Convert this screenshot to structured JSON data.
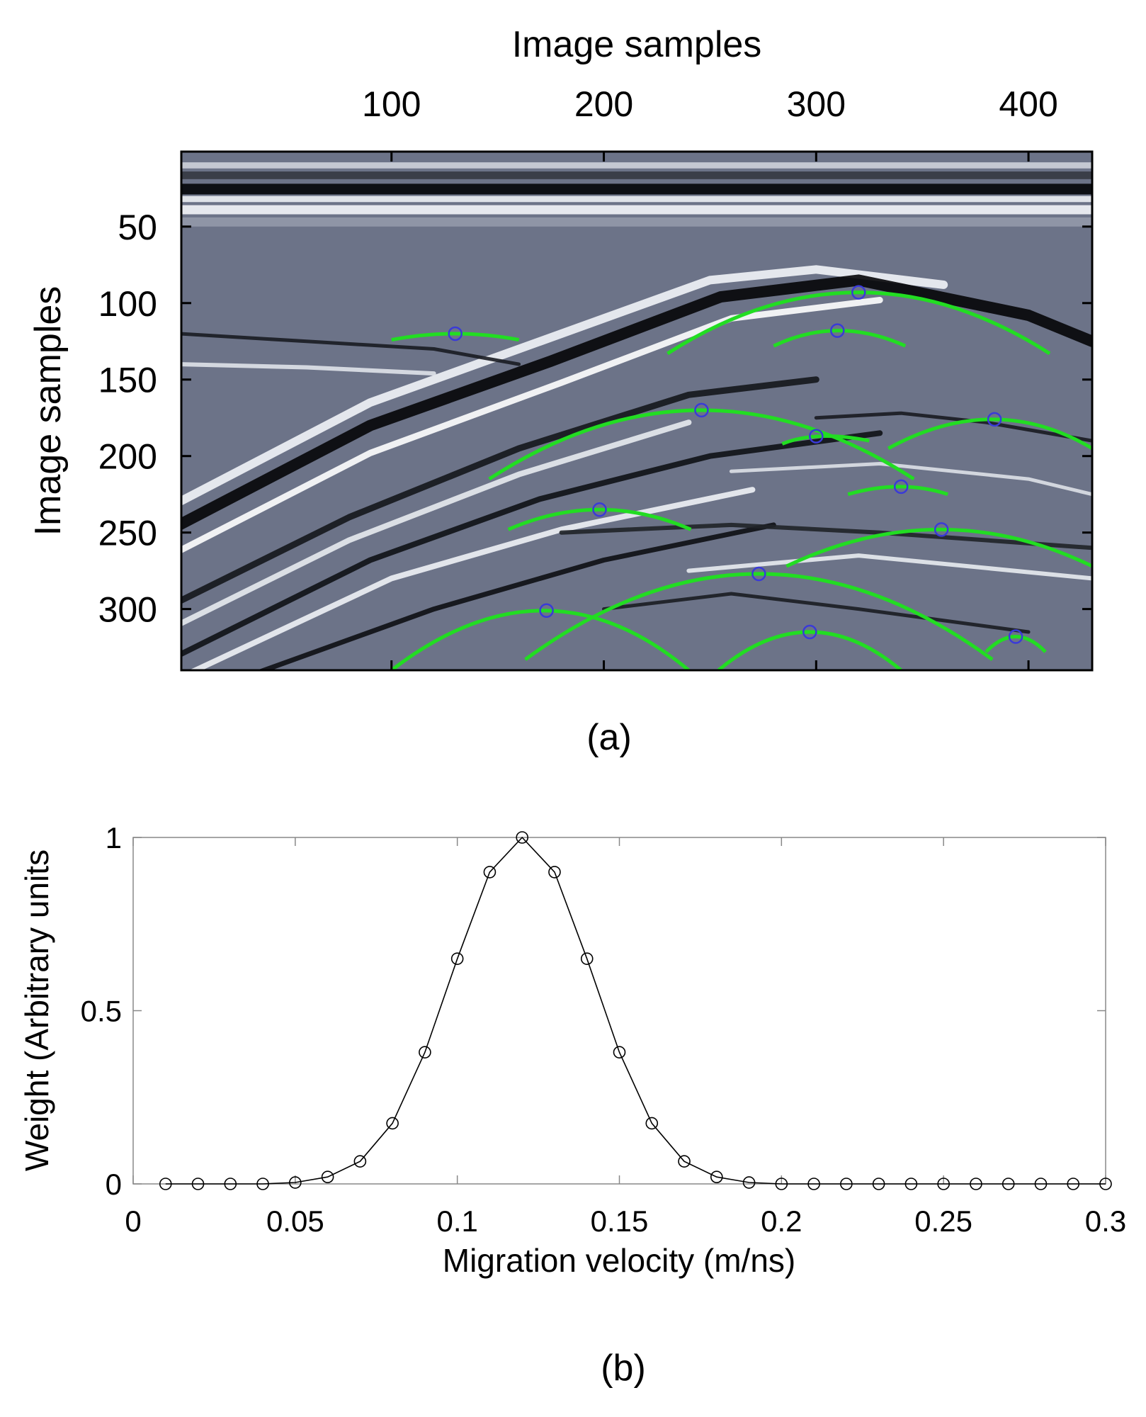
{
  "chart_data": [
    {
      "panel_label": "(a)",
      "type": "heatmap",
      "xlabel": "Image samples",
      "ylabel": "Image samples",
      "x_axis_position": "top",
      "xlim": [
        1,
        430
      ],
      "ylim": [
        1,
        340
      ],
      "y_reversed": true,
      "xticks": [
        100,
        200,
        300,
        400
      ],
      "yticks": [
        50,
        100,
        150,
        200,
        250,
        300
      ],
      "colormap": [
        "#000000",
        "#6c7388",
        "#ffffff"
      ],
      "hyperbola_color": "#22dd22",
      "marker_color": "#3a3ad8",
      "picked_apexes": [
        {
          "x": 130,
          "y": 120
        },
        {
          "x": 320,
          "y": 93
        },
        {
          "x": 310,
          "y": 118
        },
        {
          "x": 246,
          "y": 170
        },
        {
          "x": 300,
          "y": 187
        },
        {
          "x": 384,
          "y": 176
        },
        {
          "x": 340,
          "y": 220
        },
        {
          "x": 198,
          "y": 235
        },
        {
          "x": 359,
          "y": 248
        },
        {
          "x": 173,
          "y": 301
        },
        {
          "x": 273,
          "y": 277
        },
        {
          "x": 297,
          "y": 315
        },
        {
          "x": 394,
          "y": 318
        }
      ],
      "hyperbolas": [
        {
          "x": [
            100,
            130,
            160
          ],
          "y": [
            124,
            120,
            124
          ]
        },
        {
          "x": [
            230,
            320,
            410
          ],
          "y": [
            133,
            93,
            133
          ]
        },
        {
          "x": [
            280,
            310,
            342
          ],
          "y": [
            128,
            118,
            128
          ]
        },
        {
          "x": [
            146,
            246,
            346
          ],
          "y": [
            215,
            170,
            215
          ]
        },
        {
          "x": [
            284,
            300,
            325
          ],
          "y": [
            192,
            187,
            190
          ]
        },
        {
          "x": [
            334,
            384,
            430
          ],
          "y": [
            195,
            176,
            195
          ]
        },
        {
          "x": [
            315,
            340,
            362
          ],
          "y": [
            225,
            220,
            225
          ]
        },
        {
          "x": [
            155,
            198,
            241
          ],
          "y": [
            248,
            235,
            248
          ]
        },
        {
          "x": [
            286,
            359,
            430
          ],
          "y": [
            272,
            248,
            272
          ]
        },
        {
          "x": [
            100,
            173,
            240
          ],
          "y": [
            340,
            301,
            340
          ]
        },
        {
          "x": [
            163,
            273,
            383
          ],
          "y": [
            333,
            277,
            333
          ]
        },
        {
          "x": [
            254,
            297,
            340
          ],
          "y": [
            340,
            315,
            340
          ]
        },
        {
          "x": [
            380,
            394,
            408
          ],
          "y": [
            328,
            318,
            328
          ]
        }
      ]
    },
    {
      "panel_label": "(b)",
      "type": "line",
      "xlabel": "Migration velocity (m/ns)",
      "ylabel": "Weight (Arbitrary units",
      "xlim": [
        0,
        0.3
      ],
      "ylim": [
        0,
        1
      ],
      "xticks": [
        "0",
        "0.05",
        "0.1",
        "0.15",
        "0.2",
        "0.25",
        "0.3"
      ],
      "yticks": [
        "0",
        "0.5",
        "1"
      ],
      "marker": "circle-open",
      "line_color": "#000000",
      "x": [
        0.01,
        0.02,
        0.03,
        0.04,
        0.05,
        0.06,
        0.07,
        0.08,
        0.09,
        0.1,
        0.11,
        0.12,
        0.13,
        0.14,
        0.15,
        0.16,
        0.17,
        0.18,
        0.19,
        0.2,
        0.21,
        0.22,
        0.23,
        0.24,
        0.25,
        0.26,
        0.27,
        0.28,
        0.29,
        0.3
      ],
      "y": [
        0,
        0,
        0,
        0,
        0.004,
        0.02,
        0.065,
        0.175,
        0.38,
        0.65,
        0.9,
        1.0,
        0.9,
        0.65,
        0.38,
        0.175,
        0.065,
        0.02,
        0.004,
        0,
        0,
        0,
        0,
        0,
        0,
        0,
        0,
        0,
        0,
        0
      ]
    }
  ]
}
